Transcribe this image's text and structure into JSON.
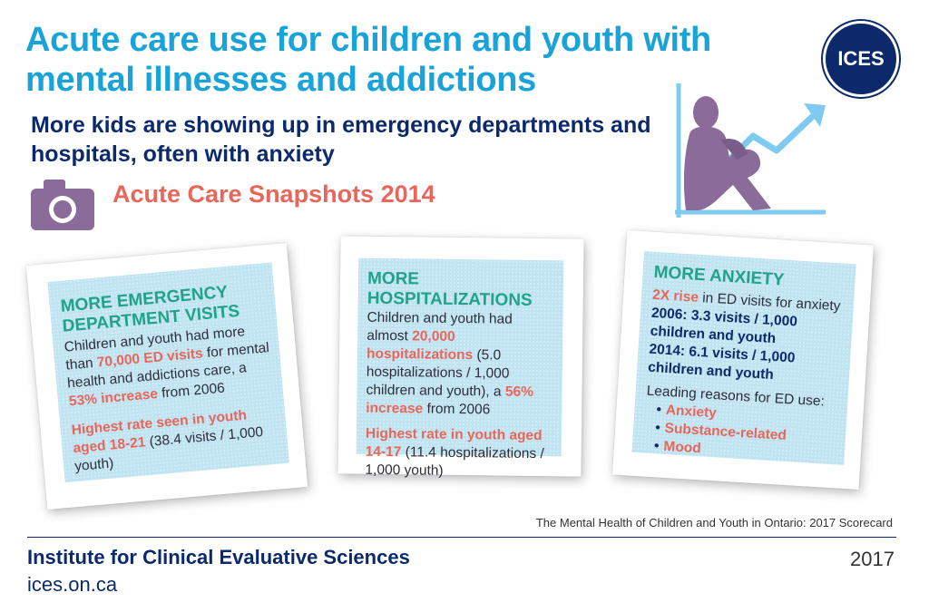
{
  "header": {
    "title": "Acute care use for children and youth with mental illnesses and addictions",
    "subtitle": "More kids are showing up in emergency departments and hospitals, often with anxiety",
    "logo_text": "ICES"
  },
  "snapshot": {
    "title": "Acute Care Snapshots 2014",
    "camera_icon": "camera-icon",
    "figure_icon": "sitting-person-rising-arrow-icon"
  },
  "cards": {
    "ed_visits": {
      "heading": "MORE EMERGENCY DEPARTMENT VISITS",
      "text1": "Children and youth had more than",
      "highlight1": "70,000 ED visits",
      "text2": "for mental health and addictions care, a",
      "highlight2": "53% increase",
      "text3": "from 2006",
      "highlight3": "Highest rate seen in youth aged 18-21",
      "text4": "(38.4 visits / 1,000 youth)"
    },
    "hospitalizations": {
      "heading": "MORE HOSPITALIZATIONS",
      "text1": "Children and youth had almost",
      "highlight1": "20,000 hospitalizations",
      "text2": "(5.0 hospitalizations / 1,000 children and youth), a",
      "highlight2": "56% increase",
      "text3": "from 2006",
      "highlight3": "Highest rate in youth aged 14-17",
      "text4": "(11.4 hospitalizations / 1,000 youth)"
    },
    "anxiety": {
      "heading": "MORE ANXIETY",
      "highlight1": "2X rise",
      "text1": "in ED visits for anxiety",
      "stat1": "2006: 3.3 visits / 1,000 children and youth",
      "stat2": "2014: 6.1 visits / 1,000 children and youth",
      "reasons_label": "Leading reasons for ED use:",
      "reasons": [
        "Anxiety",
        "Substance-related",
        "Mood"
      ]
    }
  },
  "footer": {
    "source": "The Mental Health of Children and Youth in Ontario: 2017 Scorecard",
    "institute": "Institute for Clinical Evaluative Sciences",
    "url": "ices.on.ca",
    "year": "2017"
  }
}
